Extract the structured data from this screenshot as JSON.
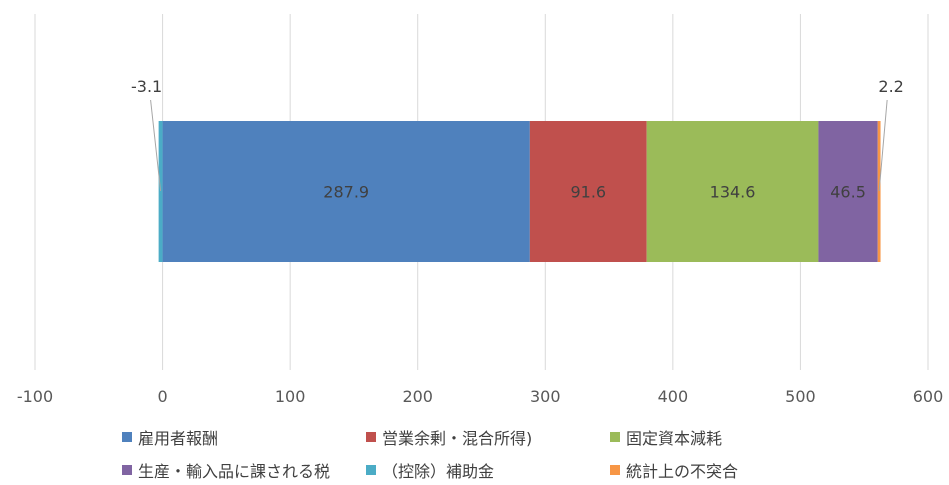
{
  "chart_data": {
    "type": "bar",
    "orientation": "horizontal",
    "stacked": true,
    "title": "",
    "xlabel": "",
    "ylabel": "",
    "xlim": [
      -100,
      600
    ],
    "x_ticks": [
      "-100",
      "0",
      "100",
      "200",
      "300",
      "400",
      "500",
      "600"
    ],
    "x_tick_values": [
      -100,
      0,
      100,
      200,
      300,
      400,
      500,
      600
    ],
    "grid": "vertical",
    "legend_position": "bottom",
    "series": [
      {
        "name": "雇用者報酬",
        "value": 287.9,
        "label": "287.9",
        "color": "#4F81BD"
      },
      {
        "name": "営業余剰・混合所得)",
        "value": 91.6,
        "label": "91.6",
        "color": "#C0504D"
      },
      {
        "name": "固定資本減耗",
        "value": 134.6,
        "label": "134.6",
        "color": "#9BBB59"
      },
      {
        "name": "生産・輸入品に課される税",
        "value": 46.5,
        "label": "46.5",
        "color": "#8064A2"
      },
      {
        "name": "（控除）補助金",
        "value": -3.1,
        "label": "-3.1",
        "color": "#4BACC6"
      },
      {
        "name": "統計上の不突合",
        "value": 2.2,
        "label": "2.2",
        "color": "#F79646"
      }
    ]
  }
}
